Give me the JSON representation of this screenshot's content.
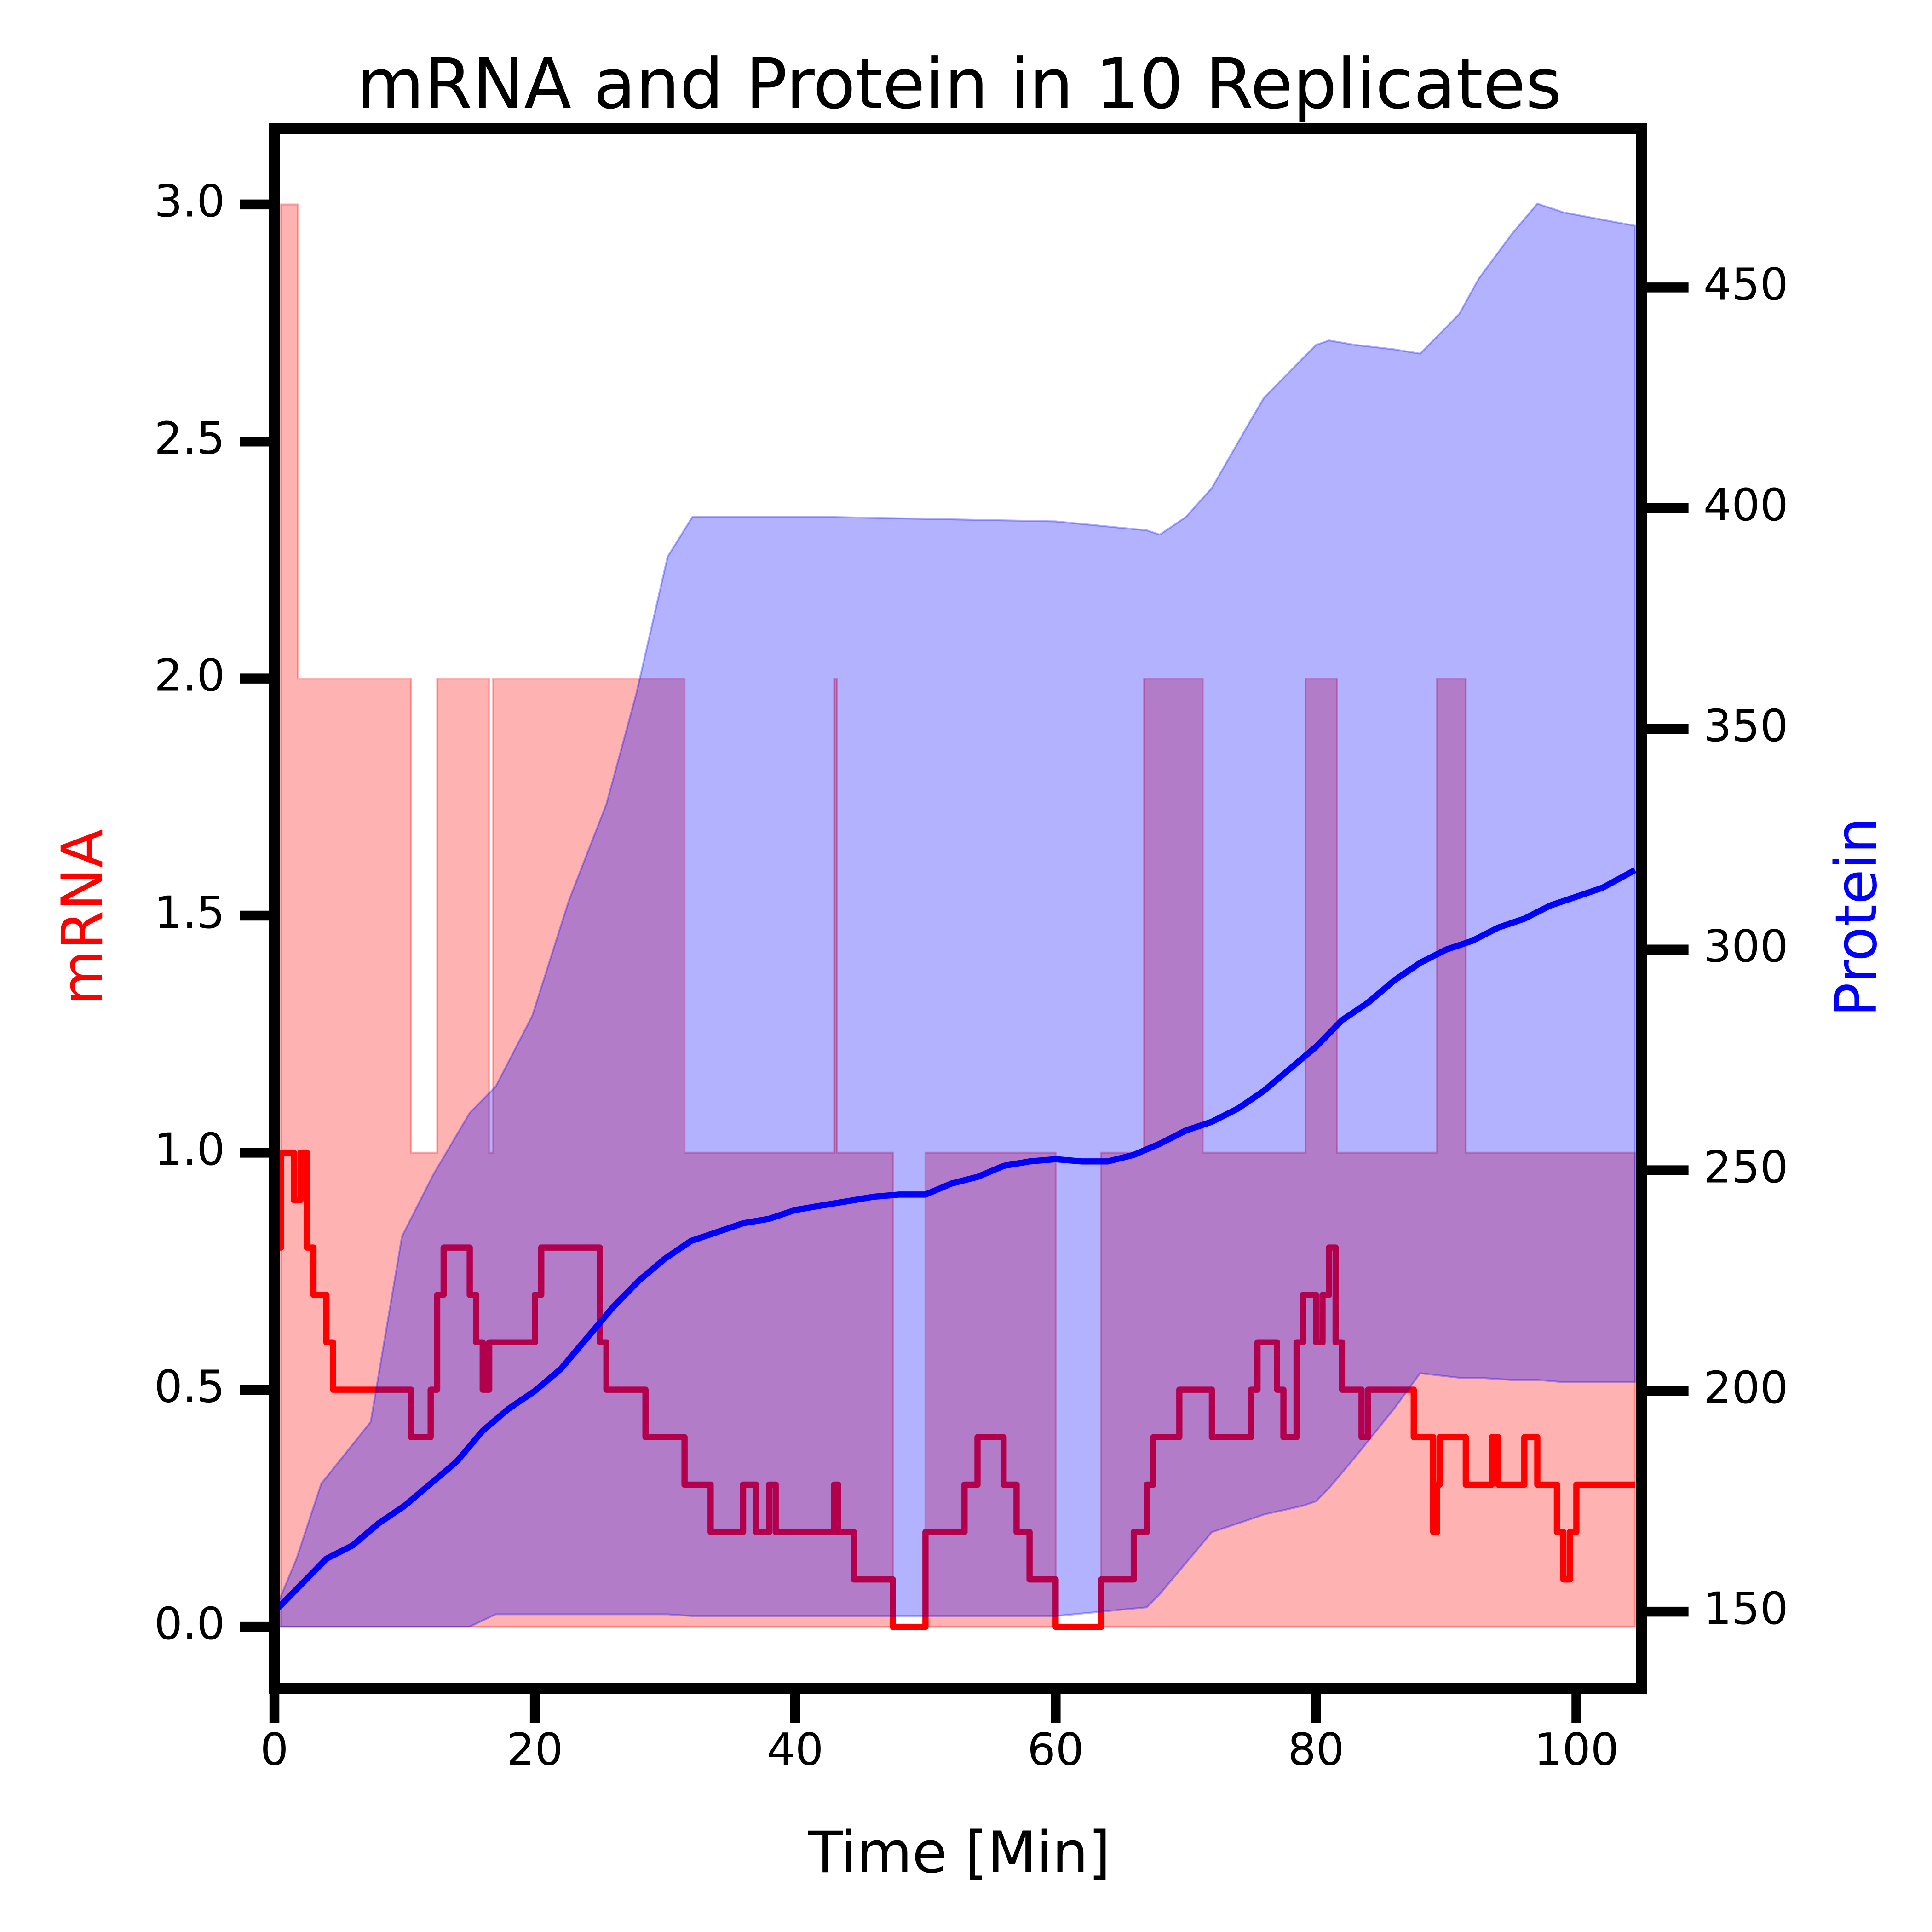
{
  "chart_data": {
    "type": "line",
    "title": "mRNA and Protein in 10 Replicates",
    "xlabel": "Time [Min]",
    "ylabel": "mRNA",
    "y2label": "Protein",
    "ylabel_color": "#ff0000",
    "y2label_color": "#0000ff",
    "xlim": [
      0,
      105
    ],
    "ylim": [
      -0.13,
      3.16
    ],
    "y2lim": [
      132.6,
      486
    ],
    "xticks": [
      0,
      20,
      40,
      60,
      80,
      100
    ],
    "yticks": [
      {
        "value": 0,
        "label": "0.0"
      },
      0.5,
      {
        "value": 1,
        "label": "1.0"
      },
      1.5,
      {
        "value": 2,
        "label": "2.0"
      },
      2.5,
      {
        "value": 3,
        "label": "3.0"
      }
    ],
    "y2ticks": [
      150,
      200,
      250,
      300,
      350,
      400,
      450
    ],
    "series": [
      {
        "kind": "band",
        "step": true,
        "axis": "y",
        "color": "#ff0000",
        "opacity": 0.3,
        "x": [
          0,
          0.5,
          1.8,
          10.5,
          12.5,
          16.5,
          16.8,
          31.5,
          43,
          43.2,
          47.5,
          50,
          60,
          63.5,
          66.8,
          71.3,
          79.2,
          81.6,
          89.3,
          91.5,
          104.5
        ],
        "values": [
          0,
          3,
          2,
          1,
          2,
          1,
          2,
          1,
          2,
          1,
          0,
          1,
          0,
          1,
          2,
          1,
          2,
          1,
          2,
          1,
          1
        ],
        "lower": [
          0,
          0,
          0,
          0,
          0,
          0,
          0,
          0,
          0,
          0,
          0,
          0,
          0,
          0,
          0,
          0,
          0,
          0,
          0,
          0,
          0
        ]
      },
      {
        "kind": "line",
        "step": true,
        "axis": "y",
        "color": "#ff0000",
        "x": [
          0,
          0.5,
          1.5,
          2,
          2.5,
          3,
          4,
          4.5,
          10.5,
          12,
          12.5,
          13,
          15,
          15.5,
          16,
          16.5,
          20,
          20.5,
          25,
          25.5,
          28.5,
          31.5,
          33.5,
          36,
          37,
          38,
          38.5,
          43,
          43.3,
          44.5,
          47.5,
          50,
          53,
          54,
          56,
          57,
          58,
          60,
          63.5,
          66,
          67,
          67.5,
          69.5,
          72,
          75,
          75.5,
          77,
          77.5,
          78.5,
          79,
          80,
          80.5,
          81,
          81.5,
          82,
          83.5,
          84,
          87.5,
          89,
          89.3,
          89.5,
          91.5,
          93.5,
          94,
          96,
          97,
          98.5,
          99,
          99.5,
          100,
          104.5
        ],
        "values": [
          0.8,
          1.0,
          0.9,
          1.0,
          0.8,
          0.7,
          0.6,
          0.5,
          0.4,
          0.5,
          0.7,
          0.8,
          0.7,
          0.6,
          0.5,
          0.6,
          0.7,
          0.8,
          0.6,
          0.5,
          0.4,
          0.3,
          0.2,
          0.3,
          0.2,
          0.3,
          0.2,
          0.3,
          0.2,
          0.1,
          0.0,
          0.2,
          0.3,
          0.4,
          0.3,
          0.2,
          0.1,
          0.0,
          0.1,
          0.2,
          0.3,
          0.4,
          0.5,
          0.4,
          0.5,
          0.6,
          0.5,
          0.4,
          0.6,
          0.7,
          0.6,
          0.7,
          0.8,
          0.6,
          0.5,
          0.4,
          0.5,
          0.4,
          0.2,
          0.3,
          0.4,
          0.3,
          0.4,
          0.3,
          0.4,
          0.3,
          0.2,
          0.1,
          0.2,
          0.3,
          0.3
        ]
      },
      {
        "kind": "band",
        "step": false,
        "axis": "y2",
        "color": "#0000ff",
        "opacity": 0.3,
        "x": [
          0,
          1.7,
          3.6,
          7.4,
          9.8,
          12.2,
          15,
          17,
          19.8,
          22.6,
          25.5,
          27.8,
          30.2,
          32.1,
          43,
          60,
          67,
          68,
          70,
          72,
          75,
          76,
          79,
          80,
          81,
          83,
          86,
          88,
          91,
          92.5,
          95,
          97,
          99,
          104.5
        ],
        "values": [
          150,
          162,
          179,
          193,
          235,
          249,
          263,
          269,
          285,
          311,
          333,
          358,
          389,
          398,
          398,
          397,
          395,
          394,
          398,
          404.6,
          420,
          425,
          434,
          437,
          438,
          437,
          436,
          435,
          444,
          452,
          462,
          469,
          467,
          464
        ],
        "lower": [
          146.6,
          146.6,
          146.6,
          146.6,
          146.6,
          146.6,
          146.6,
          149.4,
          149.4,
          149.4,
          149.4,
          149.4,
          149.4,
          149,
          149,
          149,
          151,
          154,
          161,
          168,
          171,
          172,
          174,
          175,
          178,
          185,
          196,
          204,
          203,
          203,
          202.5,
          202.5,
          202,
          202
        ]
      },
      {
        "kind": "line",
        "step": false,
        "axis": "y2",
        "color": "#0000ff",
        "x": [
          0,
          2,
          4,
          6,
          8,
          10,
          12,
          14,
          16,
          18,
          20,
          22,
          24,
          26,
          28,
          30,
          32,
          34,
          36,
          38,
          40,
          42,
          44,
          46,
          48,
          50,
          52,
          54,
          56,
          58,
          60,
          62,
          64,
          66,
          68,
          70,
          72,
          74,
          76,
          78,
          80,
          82,
          84,
          86,
          88,
          90,
          92,
          94,
          96,
          98,
          100,
          102,
          104.5
        ],
        "values": [
          150,
          156,
          162,
          165,
          170,
          174,
          179,
          184,
          191,
          196,
          200,
          205,
          212,
          219,
          225,
          230,
          234,
          236,
          238,
          239,
          241,
          242,
          243,
          244,
          244.5,
          244.5,
          247,
          248.5,
          251,
          252,
          252.5,
          252,
          252,
          253.5,
          256,
          259,
          261,
          264,
          268,
          273,
          278,
          284,
          288,
          293,
          297,
          300,
          302,
          305,
          307,
          310,
          312,
          314,
          318
        ]
      }
    ]
  }
}
